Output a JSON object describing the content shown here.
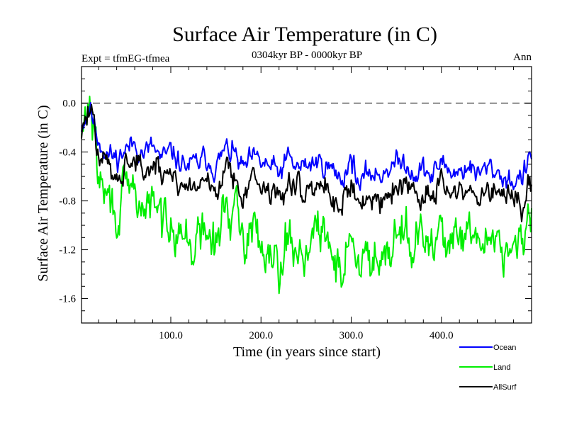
{
  "chart_data": {
    "type": "line",
    "title": "Surface Air Temperature (in C)",
    "subtitle_left": "Expt = tfmEG-tfmea",
    "subtitle_center": "0304kyr BP - 0000kyr BP",
    "subtitle_right": "Ann",
    "xlabel": "Time (in years since start)",
    "ylabel": "Surface Air Temperature (in C)",
    "xlim": [
      1,
      500
    ],
    "ylim": [
      -1.8,
      0.3
    ],
    "xticks": [
      100,
      200,
      300,
      400
    ],
    "xtick_labels": [
      "100.0",
      "200.0",
      "300.0",
      "400.0"
    ],
    "yticks": [
      0.0,
      -0.4,
      -0.8,
      -1.2,
      -1.6
    ],
    "ytick_labels": [
      "0.0",
      "-0.4",
      "-0.8",
      "-1.2",
      "-1.6"
    ],
    "reference_line": {
      "y": 0.0,
      "style": "dashed",
      "color": "#888888"
    },
    "legend_position": "bottom-right",
    "colors": {
      "Ocean": "#0000ff",
      "Land": "#00ee00",
      "AllSurf": "#000000"
    },
    "series": [
      {
        "name": "Ocean",
        "x": [
          1,
          10,
          20,
          30,
          40,
          50,
          60,
          70,
          80,
          90,
          100,
          110,
          120,
          130,
          140,
          150,
          160,
          170,
          180,
          190,
          200,
          210,
          220,
          230,
          240,
          250,
          260,
          270,
          280,
          290,
          300,
          310,
          320,
          330,
          340,
          350,
          360,
          370,
          380,
          390,
          400,
          410,
          420,
          430,
          440,
          450,
          460,
          470,
          480,
          490,
          500
        ],
        "values": [
          -0.18,
          -0.03,
          -0.3,
          -0.42,
          -0.45,
          -0.38,
          -0.33,
          -0.41,
          -0.36,
          -0.47,
          -0.4,
          -0.48,
          -0.52,
          -0.49,
          -0.45,
          -0.53,
          -0.38,
          -0.41,
          -0.55,
          -0.46,
          -0.49,
          -0.52,
          -0.58,
          -0.45,
          -0.53,
          -0.51,
          -0.48,
          -0.49,
          -0.56,
          -0.62,
          -0.44,
          -0.7,
          -0.55,
          -0.6,
          -0.52,
          -0.5,
          -0.48,
          -0.57,
          -0.54,
          -0.61,
          -0.47,
          -0.55,
          -0.57,
          -0.5,
          -0.6,
          -0.53,
          -0.55,
          -0.61,
          -0.64,
          -0.6,
          -0.44
        ]
      },
      {
        "name": "Land",
        "x": [
          1,
          10,
          20,
          30,
          40,
          50,
          60,
          70,
          80,
          90,
          100,
          110,
          120,
          130,
          140,
          150,
          160,
          170,
          180,
          190,
          200,
          210,
          220,
          230,
          240,
          250,
          260,
          270,
          280,
          290,
          300,
          310,
          320,
          330,
          340,
          350,
          360,
          370,
          380,
          390,
          400,
          410,
          420,
          430,
          440,
          450,
          460,
          470,
          480,
          490,
          500
        ],
        "values": [
          -0.32,
          0.05,
          -0.62,
          -0.78,
          -0.92,
          -0.74,
          -0.73,
          -0.88,
          -0.82,
          -0.98,
          -0.9,
          -1.02,
          -1.18,
          -1.12,
          -1.05,
          -1.2,
          -0.82,
          -0.92,
          -1.1,
          -1.02,
          -1.12,
          -1.17,
          -1.28,
          -1.1,
          -1.22,
          -1.18,
          -1.06,
          -1.12,
          -1.24,
          -1.38,
          -1.02,
          -1.45,
          -1.18,
          -1.25,
          -1.14,
          -1.05,
          -1.0,
          -1.17,
          -1.12,
          -1.24,
          -0.98,
          -1.14,
          -1.19,
          -1.07,
          -1.22,
          -1.1,
          -1.05,
          -1.19,
          -1.22,
          -1.15,
          -0.95
        ]
      },
      {
        "name": "AllSurf",
        "x": [
          1,
          10,
          20,
          30,
          40,
          50,
          60,
          70,
          80,
          90,
          100,
          110,
          120,
          130,
          140,
          150,
          160,
          170,
          180,
          190,
          200,
          210,
          220,
          230,
          240,
          250,
          260,
          270,
          280,
          290,
          300,
          310,
          320,
          330,
          340,
          350,
          360,
          370,
          380,
          390,
          400,
          410,
          420,
          430,
          440,
          450,
          460,
          470,
          480,
          490,
          500
        ],
        "values": [
          -0.22,
          -0.05,
          -0.42,
          -0.52,
          -0.58,
          -0.5,
          -0.46,
          -0.56,
          -0.52,
          -0.6,
          -0.55,
          -0.64,
          -0.7,
          -0.66,
          -0.62,
          -0.72,
          -0.54,
          -0.58,
          -0.72,
          -0.63,
          -0.68,
          -0.71,
          -0.78,
          -0.64,
          -0.73,
          -0.7,
          -0.66,
          -0.68,
          -0.76,
          -0.84,
          -0.62,
          -0.9,
          -0.74,
          -0.8,
          -0.71,
          -0.68,
          -0.65,
          -0.77,
          -0.73,
          -0.81,
          -0.64,
          -0.74,
          -0.77,
          -0.69,
          -0.8,
          -0.72,
          -0.72,
          -0.8,
          -0.84,
          -0.8,
          -0.62
        ]
      }
    ]
  }
}
